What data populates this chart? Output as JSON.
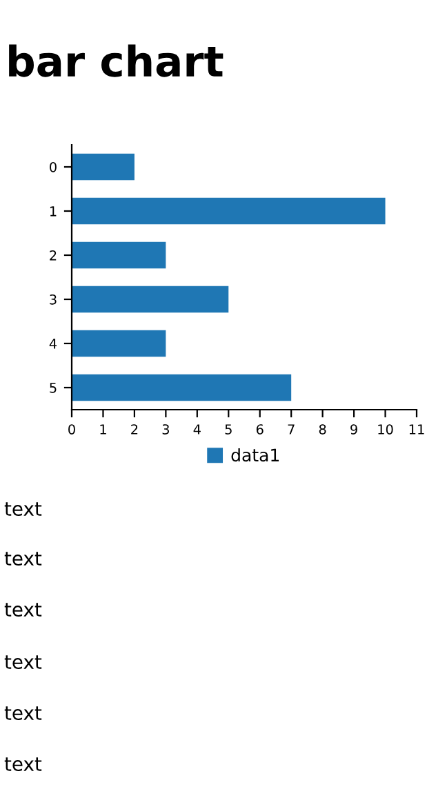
{
  "chart_data": {
    "type": "bar",
    "title": "bar chart",
    "orientation": "horizontal",
    "categories": [
      "0",
      "1",
      "2",
      "3",
      "4",
      "5"
    ],
    "series": [
      {
        "name": "data1",
        "color": "#1f77b4",
        "values": [
          2,
          10,
          3,
          5,
          3,
          7
        ]
      }
    ],
    "xlim": [
      0,
      11
    ],
    "xticks": [
      0,
      1,
      2,
      3,
      4,
      5,
      6,
      7,
      8,
      9,
      10,
      11
    ],
    "grid": false,
    "legend": "bottom",
    "annotations": [
      "text",
      "text",
      "text",
      "text",
      "text",
      "text"
    ]
  }
}
